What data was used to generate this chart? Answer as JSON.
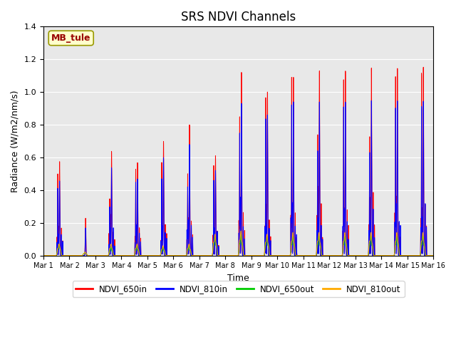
{
  "title": "SRS NDVI Channels",
  "xlabel": "Time",
  "ylabel": "Radiance (W/m2/nm/s)",
  "annotation": "MB_tule",
  "ylim": [
    0,
    1.4
  ],
  "background_color": "#e8e8e8",
  "legend": [
    {
      "label": "NDVI_650in",
      "color": "#ff0000"
    },
    {
      "label": "NDVI_810in",
      "color": "#0000ff"
    },
    {
      "label": "NDVI_650out",
      "color": "#00cc00"
    },
    {
      "label": "NDVI_810out",
      "color": "#ffaa00"
    }
  ],
  "n_days": 15,
  "peaks_650in": [
    0.58,
    0.23,
    0.64,
    0.57,
    0.7,
    0.8,
    0.61,
    1.12,
    1.0,
    1.09,
    1.13,
    1.13,
    1.15,
    1.15,
    1.16
  ],
  "peaks_810in": [
    0.46,
    0.17,
    0.54,
    0.47,
    0.6,
    0.68,
    0.52,
    0.93,
    0.86,
    0.94,
    0.94,
    0.94,
    0.95,
    0.95,
    0.95
  ],
  "peaks_650out": [
    0.07,
    0.02,
    0.05,
    0.06,
    0.05,
    0.06,
    0.12,
    0.13,
    0.12,
    0.12,
    0.12,
    0.12,
    0.12,
    0.12,
    0.12
  ],
  "peaks_810out": [
    0.07,
    0.02,
    0.07,
    0.07,
    0.06,
    0.07,
    0.13,
    0.15,
    0.13,
    0.14,
    0.14,
    0.14,
    0.14,
    0.14,
    0.14
  ],
  "secondary_peaks_650in": [
    0.51,
    0.0,
    0.35,
    0.53,
    0.57,
    0.5,
    0.55,
    0.85,
    0.97,
    1.1,
    0.75,
    1.1,
    0.75,
    1.14,
    1.15
  ],
  "secondary_peaks_810in": [
    0.42,
    0.0,
    0.3,
    0.45,
    0.47,
    0.42,
    0.46,
    0.75,
    0.84,
    0.93,
    0.65,
    0.93,
    0.65,
    0.94,
    0.94
  ]
}
